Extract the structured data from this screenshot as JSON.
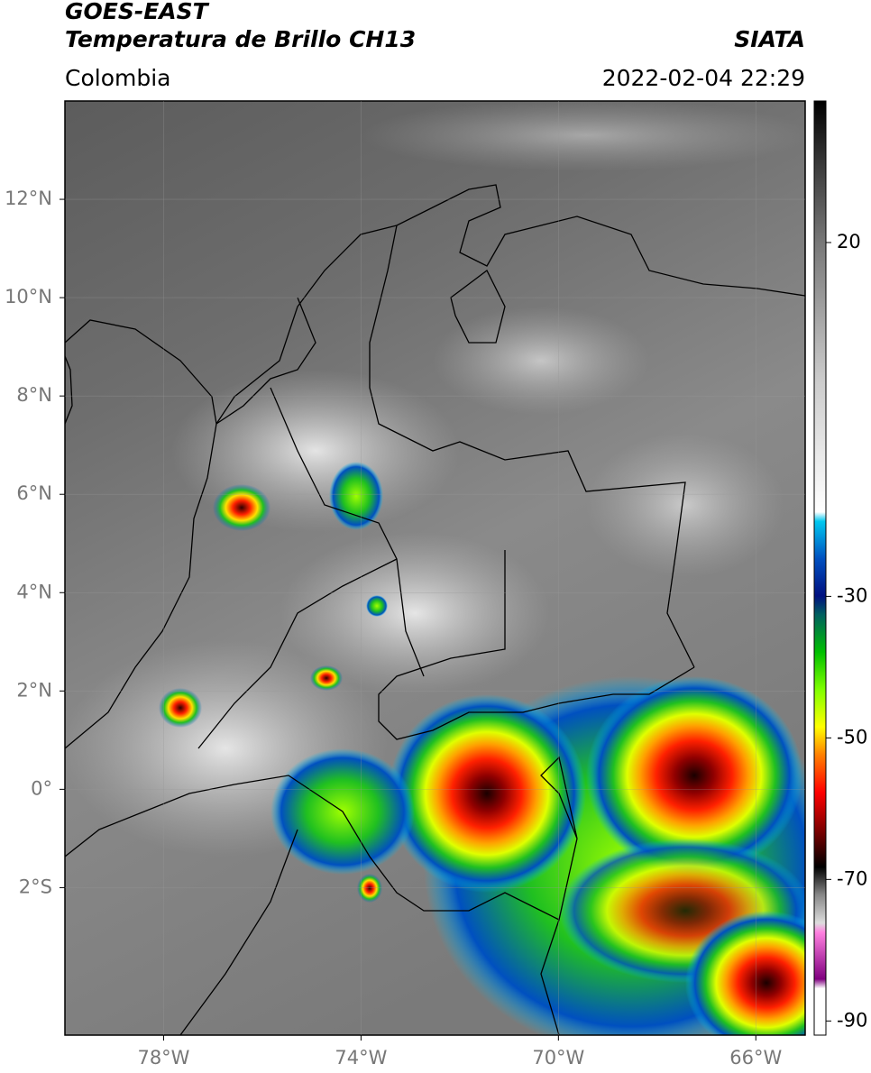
{
  "header": {
    "title": "GOES-EAST",
    "subtitle": "Temperatura de Brillo CH13",
    "region": "Colombia",
    "source": "SIATA",
    "datetime": "2022-02-04 22:29"
  },
  "map": {
    "xlim": [
      -80,
      -65
    ],
    "ylim": [
      -5,
      14
    ],
    "xticks": [
      {
        "value": -78,
        "label": "78°W"
      },
      {
        "value": -74,
        "label": "74°W"
      },
      {
        "value": -70,
        "label": "70°W"
      },
      {
        "value": -66,
        "label": "66°W"
      }
    ],
    "yticks": [
      {
        "value": 12,
        "label": "12°N"
      },
      {
        "value": 10,
        "label": "10°N"
      },
      {
        "value": 8,
        "label": "8°N"
      },
      {
        "value": 6,
        "label": "6°N"
      },
      {
        "value": 4,
        "label": "4°N"
      },
      {
        "value": 2,
        "label": "2°N"
      },
      {
        "value": 0,
        "label": "0°"
      },
      {
        "value": -2,
        "label": "2°S"
      }
    ]
  },
  "colorbar": {
    "clim": [
      -92,
      40
    ],
    "ticks": [
      20,
      -30,
      -50,
      -70,
      -90
    ]
  }
}
